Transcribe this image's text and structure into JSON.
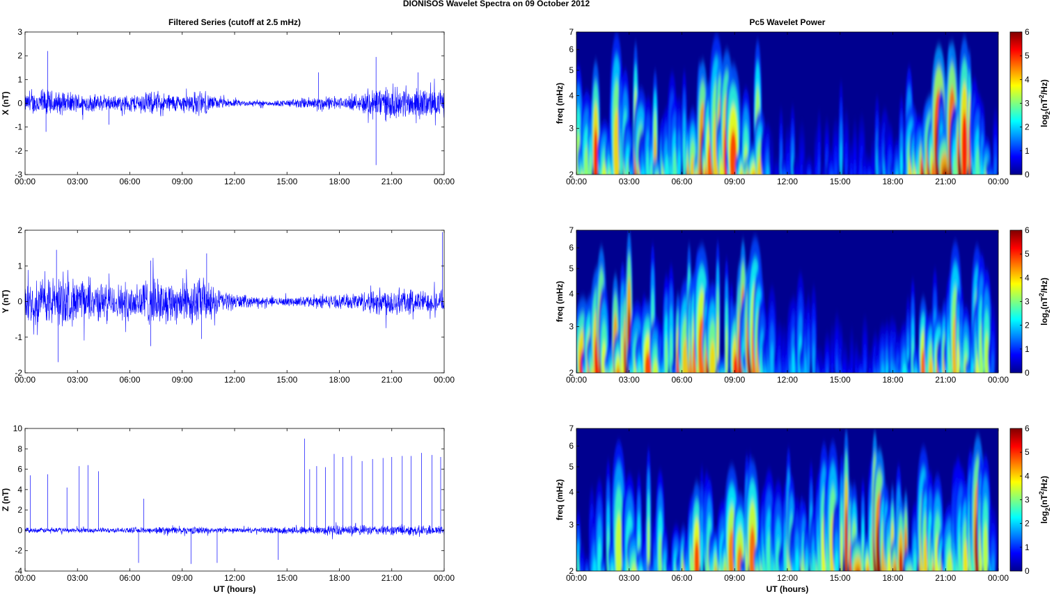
{
  "figure_title": "DIONISOS Wavelet Spectra on 09 October   2012",
  "left_title": "Filtered Series (cutoff at 2.5 mHz)",
  "right_title": "Pc5 Wavelet Power",
  "xlabel": "UT (hours)",
  "freq_label": "freq (mHz)",
  "colorbar_label": {
    "base": "log",
    "sub": "2",
    "mid": "(nT",
    "sup": "2",
    "end": "/Hz)"
  },
  "colors": {
    "trace": "#0000ff",
    "background_power": "#00008f",
    "colormap": "jet"
  },
  "chart_data": [
    {
      "type": "line",
      "ylabel": "X (nT)",
      "ylim": [
        -3,
        3
      ],
      "yticks": [
        "-3",
        "-2",
        "-1",
        "0",
        "1",
        "2",
        "3"
      ],
      "xticks": [
        "00:00",
        "03:00",
        "06:00",
        "09:00",
        "12:00",
        "15:00",
        "18:00",
        "21:00",
        "00:00"
      ],
      "xlim_hours": [
        0,
        24
      ],
      "envelope": {
        "hours": [
          0,
          1,
          2,
          3,
          4,
          5,
          6,
          7,
          8,
          9,
          10,
          11,
          12,
          13,
          14,
          15,
          16,
          17,
          18,
          19,
          20,
          21,
          22,
          23,
          24
        ],
        "amplitude": [
          0.3,
          0.5,
          0.4,
          0.35,
          0.3,
          0.25,
          0.3,
          0.4,
          0.35,
          0.3,
          0.45,
          0.2,
          0.12,
          0.1,
          0.1,
          0.12,
          0.2,
          0.25,
          0.2,
          0.25,
          0.6,
          0.55,
          0.5,
          0.5,
          0.45
        ]
      },
      "extremes": [
        {
          "t": 1.3,
          "v": 2.2
        },
        {
          "t": 1.2,
          "v": -1.2
        },
        {
          "t": 4.8,
          "v": -0.9
        },
        {
          "t": 20.1,
          "v": 1.95
        },
        {
          "t": 20.1,
          "v": -2.6
        },
        {
          "t": 16.8,
          "v": 1.3
        },
        {
          "t": 22.5,
          "v": 1.3
        }
      ]
    },
    {
      "type": "line",
      "ylabel": "Y (nT)",
      "ylim": [
        -2,
        2
      ],
      "yticks": [
        "-2",
        "-1",
        "0",
        "1",
        "2"
      ],
      "xticks": [
        "00:00",
        "03:00",
        "06:00",
        "09:00",
        "12:00",
        "15:00",
        "18:00",
        "21:00",
        "00:00"
      ],
      "xlim_hours": [
        0,
        24
      ],
      "envelope": {
        "hours": [
          0,
          1,
          2,
          3,
          4,
          5,
          6,
          7,
          8,
          9,
          10,
          11,
          12,
          13,
          14,
          15,
          16,
          17,
          18,
          19,
          20,
          21,
          22,
          23,
          24
        ],
        "amplitude": [
          0.45,
          0.55,
          0.6,
          0.5,
          0.45,
          0.4,
          0.45,
          0.55,
          0.5,
          0.5,
          0.55,
          0.3,
          0.18,
          0.12,
          0.1,
          0.1,
          0.12,
          0.15,
          0.15,
          0.2,
          0.3,
          0.35,
          0.3,
          0.25,
          0.25
        ]
      },
      "extremes": [
        {
          "t": 1.8,
          "v": 1.45
        },
        {
          "t": 1.9,
          "v": -1.7
        },
        {
          "t": 7.2,
          "v": 1.15
        },
        {
          "t": 7.2,
          "v": -1.25
        },
        {
          "t": 10.4,
          "v": 1.35
        },
        {
          "t": 10.1,
          "v": -1.05
        },
        {
          "t": 23.9,
          "v": 1.95
        }
      ]
    },
    {
      "type": "line",
      "ylabel": "Z (nT)",
      "ylim": [
        -4,
        10
      ],
      "yticks": [
        "-4",
        "-2",
        "0",
        "2",
        "4",
        "6",
        "8",
        "10"
      ],
      "xticks": [
        "00:00",
        "03:00",
        "06:00",
        "09:00",
        "12:00",
        "15:00",
        "18:00",
        "21:00",
        "00:00"
      ],
      "xlim_hours": [
        0,
        24
      ],
      "envelope": {
        "hours": [
          0,
          1,
          2,
          3,
          4,
          5,
          6,
          7,
          8,
          9,
          10,
          11,
          12,
          13,
          14,
          15,
          16,
          17,
          18,
          19,
          20,
          21,
          22,
          23,
          24
        ],
        "amplitude": [
          0.2,
          0.2,
          0.2,
          0.2,
          0.2,
          0.2,
          0.2,
          0.25,
          0.3,
          0.3,
          0.3,
          0.2,
          0.2,
          0.2,
          0.25,
          0.3,
          0.35,
          0.4,
          0.4,
          0.4,
          0.4,
          0.4,
          0.4,
          0.4,
          0.4
        ]
      },
      "spikes": [
        {
          "t": 0.3,
          "v": 5.4
        },
        {
          "t": 1.3,
          "v": 5.5
        },
        {
          "t": 2.4,
          "v": 4.2
        },
        {
          "t": 3.1,
          "v": 6.3
        },
        {
          "t": 3.6,
          "v": 6.4
        },
        {
          "t": 4.2,
          "v": 5.8
        },
        {
          "t": 6.8,
          "v": 3.1
        },
        {
          "t": 16.0,
          "v": 9.0
        },
        {
          "t": 16.3,
          "v": 6.0
        },
        {
          "t": 16.7,
          "v": 6.3
        },
        {
          "t": 17.2,
          "v": 6.2
        },
        {
          "t": 17.7,
          "v": 7.5
        },
        {
          "t": 18.2,
          "v": 7.2
        },
        {
          "t": 18.7,
          "v": 7.3
        },
        {
          "t": 19.3,
          "v": 6.8
        },
        {
          "t": 19.9,
          "v": 7.0
        },
        {
          "t": 20.5,
          "v": 7.1
        },
        {
          "t": 21.0,
          "v": 7.2
        },
        {
          "t": 21.6,
          "v": 7.3
        },
        {
          "t": 22.1,
          "v": 7.3
        },
        {
          "t": 22.7,
          "v": 7.6
        },
        {
          "t": 23.3,
          "v": 7.4
        },
        {
          "t": 23.8,
          "v": 7.2
        }
      ],
      "dips": [
        {
          "t": 6.5,
          "v": -3.2
        },
        {
          "t": 9.5,
          "v": -3.3
        },
        {
          "t": 11.0,
          "v": -3.2
        },
        {
          "t": 14.5,
          "v": -2.9
        }
      ]
    },
    {
      "type": "heatmap",
      "ylabel": "freq (mHz)",
      "ylim_mhz": [
        2,
        7
      ],
      "yscale": "log",
      "yticks": [
        "2",
        "3",
        "4",
        "5",
        "6",
        "7"
      ],
      "xticks": [
        "00:00",
        "03:00",
        "06:00",
        "09:00",
        "12:00",
        "15:00",
        "18:00",
        "21:00",
        "00:00"
      ],
      "xlim_hours": [
        0,
        24
      ],
      "colorbar": {
        "range": [
          0,
          6
        ],
        "ticks": [
          "0",
          "1",
          "2",
          "3",
          "4",
          "5",
          "6"
        ]
      },
      "activity": {
        "hours": [
          0,
          1,
          2,
          3,
          4,
          5,
          6,
          7,
          8,
          9,
          10,
          11,
          12,
          13,
          14,
          15,
          16,
          17,
          18,
          19,
          20,
          21,
          22,
          23,
          24
        ],
        "level": [
          3.5,
          5.0,
          4.2,
          4.5,
          4.0,
          3.5,
          3.8,
          5.0,
          5.2,
          5.0,
          5.5,
          1.2,
          1.8,
          1.5,
          1.0,
          2.0,
          1.5,
          1.8,
          2.5,
          4.0,
          6.0,
          5.5,
          5.5,
          4.5,
          1.0
        ]
      }
    },
    {
      "type": "heatmap",
      "ylabel": "freq (mHz)",
      "ylim_mhz": [
        2,
        7
      ],
      "yscale": "log",
      "yticks": [
        "2",
        "3",
        "4",
        "5",
        "6",
        "7"
      ],
      "xticks": [
        "00:00",
        "03:00",
        "06:00",
        "09:00",
        "12:00",
        "15:00",
        "18:00",
        "21:00",
        "00:00"
      ],
      "xlim_hours": [
        0,
        24
      ],
      "colorbar": {
        "range": [
          0,
          6
        ],
        "ticks": [
          "0",
          "1",
          "2",
          "3",
          "4",
          "5",
          "6"
        ]
      },
      "activity": {
        "hours": [
          0,
          1,
          2,
          3,
          4,
          5,
          6,
          7,
          8,
          9,
          10,
          11,
          12,
          13,
          14,
          15,
          16,
          17,
          18,
          19,
          20,
          21,
          22,
          23,
          24
        ],
        "level": [
          5.5,
          5.0,
          4.8,
          5.0,
          4.8,
          4.5,
          4.5,
          5.2,
          5.0,
          5.0,
          5.5,
          2.0,
          2.0,
          2.0,
          1.5,
          1.2,
          1.5,
          1.8,
          2.2,
          3.5,
          4.5,
          4.0,
          3.8,
          4.5,
          1.0
        ]
      }
    },
    {
      "type": "heatmap",
      "ylabel": "freq (mHz)",
      "ylim_mhz": [
        2,
        7
      ],
      "yscale": "log",
      "yticks": [
        "2",
        "3",
        "4",
        "5",
        "6",
        "7"
      ],
      "xticks": [
        "00:00",
        "03:00",
        "06:00",
        "09:00",
        "12:00",
        "15:00",
        "18:00",
        "21:00",
        "00:00"
      ],
      "xlim_hours": [
        0,
        24
      ],
      "colorbar": {
        "range": [
          0,
          6
        ],
        "ticks": [
          "0",
          "1",
          "2",
          "3",
          "4",
          "5",
          "6"
        ]
      },
      "activity": {
        "hours": [
          0,
          1,
          2,
          3,
          4,
          5,
          6,
          7,
          8,
          9,
          10,
          11,
          12,
          13,
          14,
          15,
          16,
          17,
          18,
          19,
          20,
          21,
          22,
          23,
          24
        ],
        "level": [
          2.5,
          2.8,
          3.0,
          3.2,
          3.0,
          2.5,
          4.0,
          4.5,
          4.5,
          4.2,
          4.5,
          3.5,
          3.5,
          3.5,
          3.8,
          4.5,
          5.0,
          5.5,
          5.5,
          5.0,
          4.5,
          4.5,
          5.0,
          5.0,
          2.0
        ]
      }
    }
  ]
}
